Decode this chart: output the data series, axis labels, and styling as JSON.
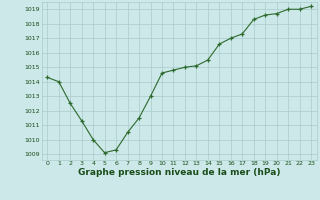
{
  "x": [
    0,
    1,
    2,
    3,
    4,
    5,
    6,
    7,
    8,
    9,
    10,
    11,
    12,
    13,
    14,
    15,
    16,
    17,
    18,
    19,
    20,
    21,
    22,
    23
  ],
  "y": [
    1014.3,
    1014.0,
    1012.5,
    1011.3,
    1010.0,
    1009.1,
    1009.3,
    1010.5,
    1011.5,
    1013.0,
    1014.6,
    1014.8,
    1015.0,
    1015.1,
    1015.5,
    1016.6,
    1017.0,
    1017.3,
    1018.3,
    1018.6,
    1018.7,
    1019.0,
    1019.0,
    1019.2
  ],
  "ylim": [
    1008.6,
    1019.5
  ],
  "yticks": [
    1009,
    1010,
    1011,
    1012,
    1013,
    1014,
    1015,
    1016,
    1017,
    1018,
    1019
  ],
  "xlabel": "Graphe pression niveau de la mer (hPa)",
  "line_color": "#2d6a2d",
  "marker_color": "#2d6a2d",
  "bg_color": "#cce8e8",
  "grid_color": "#aacccc",
  "axis_label_color": "#1a4d1a",
  "tick_label_color": "#1a4d1a"
}
